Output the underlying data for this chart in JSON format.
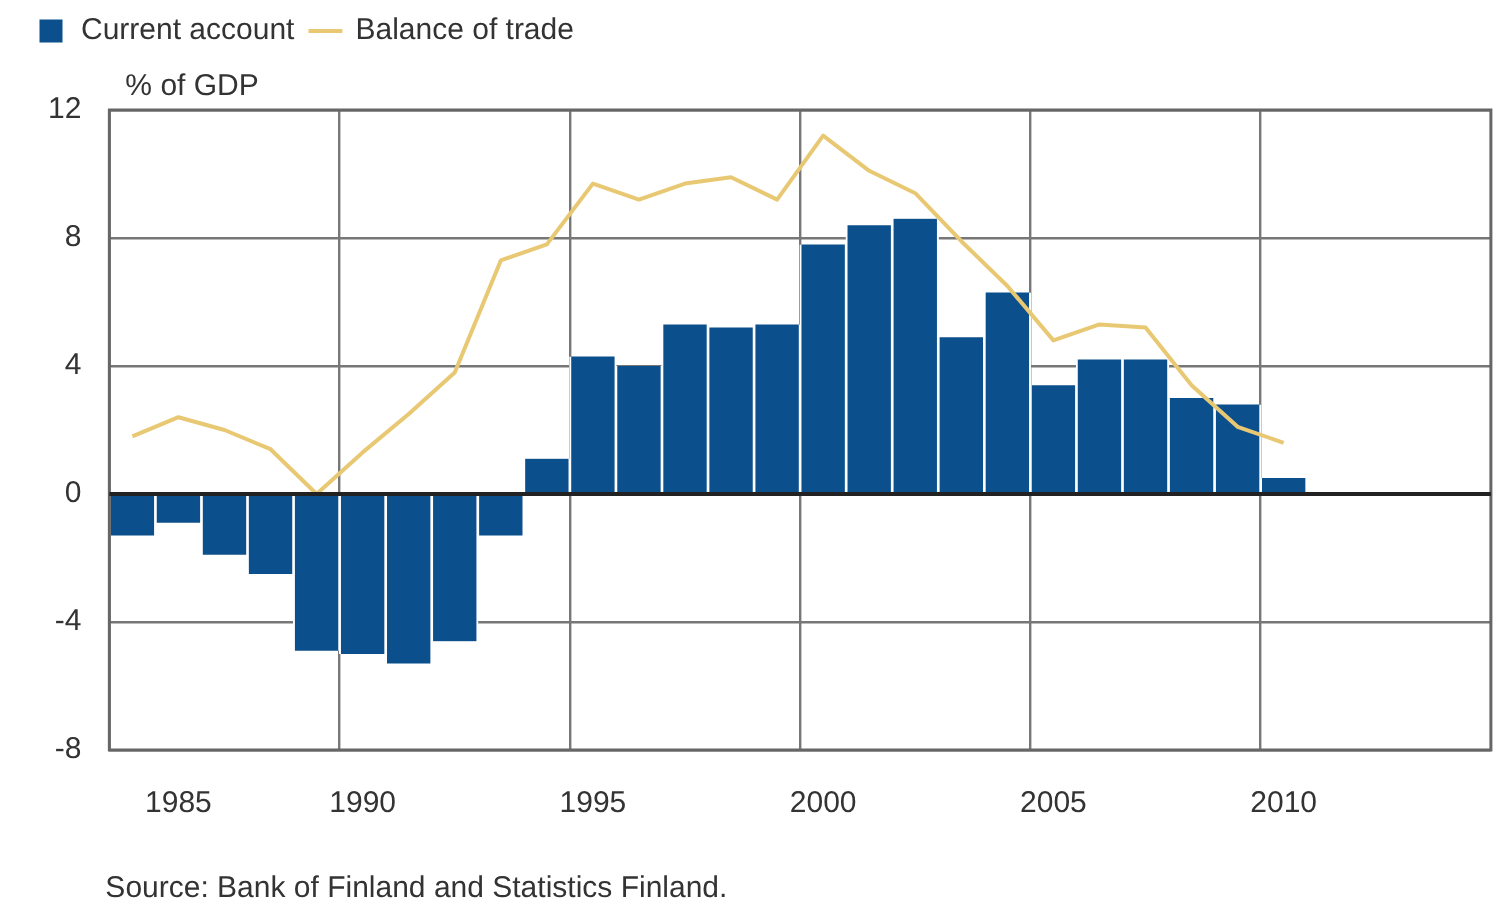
{
  "chart_data": {
    "type": "bar",
    "legend": "top left",
    "ylabel": "% of GDP",
    "annotations": [
      "Source: Bank of Finland and Statistics Finland."
    ],
    "categories": [
      null,
      "1985",
      null,
      null,
      null,
      "1990",
      null,
      null,
      null,
      null,
      "1995",
      null,
      null,
      null,
      null,
      "2000",
      null,
      null,
      null,
      null,
      "2005",
      null,
      null,
      null,
      null,
      "2010",
      null,
      null,
      null,
      null
    ],
    "series": [
      {
        "name": "Current account",
        "color": "#0b4f8c",
        "values": [
          -1.3,
          -0.9,
          -1.9,
          -2.5,
          -4.9,
          -5.0,
          -5.3,
          -4.6,
          -1.3,
          1.1,
          4.3,
          4.0,
          5.3,
          5.2,
          5.3,
          7.8,
          8.4,
          8.6,
          4.9,
          6.3,
          3.4,
          4.2,
          4.2,
          3.0,
          2.8,
          0.5,
          null,
          null,
          null,
          null
        ]
      },
      {
        "name": "Balance of trade",
        "type": "line",
        "color": "#e8c872",
        "values": [
          1.8,
          2.4,
          2.0,
          1.4,
          0.0,
          1.3,
          2.5,
          3.8,
          7.3,
          7.8,
          9.7,
          9.2,
          9.7,
          9.9,
          9.2,
          11.2,
          10.1,
          9.4,
          7.9,
          6.5,
          4.8,
          5.3,
          5.2,
          3.4,
          2.1,
          1.6,
          null,
          null,
          null,
          null
        ]
      }
    ],
    "marker": "none",
    "ylim": [
      -8,
      12
    ],
    "yticks": [
      -8,
      -4,
      0,
      4,
      8,
      12
    ],
    "grid": true
  }
}
